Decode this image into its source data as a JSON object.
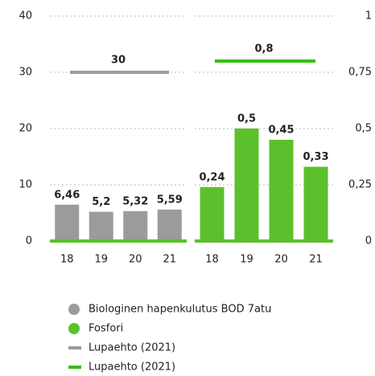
{
  "chart_data": [
    {
      "type": "bar",
      "categories": [
        "18",
        "19",
        "20",
        "21"
      ],
      "series": [
        {
          "name": "Biologinen hapenkulutus BOD 7atu",
          "color": "#9b9b9b",
          "values": [
            6.46,
            5.2,
            5.32,
            5.59
          ],
          "value_labels": [
            "6,46",
            "5,2",
            "5,32",
            "5,59"
          ]
        }
      ],
      "limit": {
        "name": "Lupaehto (2021)",
        "value": 30,
        "color": "#9b9b9b"
      },
      "ylim": [
        0,
        40
      ],
      "yticks": [
        0,
        10,
        20,
        30,
        40
      ],
      "grid": true
    },
    {
      "type": "bar",
      "categories": [
        "18",
        "19",
        "20",
        "21"
      ],
      "series": [
        {
          "name": "Fosfori",
          "color": "#5cc02c",
          "axis": "y2",
          "values": [
            0.24,
            0.5,
            0.45,
            0.33
          ],
          "value_labels": [
            "0,24",
            "0,5",
            "0,45",
            "0,33"
          ]
        }
      ],
      "limit": {
        "name": "Lupaehto (2021)",
        "value": 0.8,
        "value_label": "0,8",
        "color": "#33c011"
      },
      "y2lim": [
        0,
        1
      ],
      "y2ticks": [
        0,
        {
          "value": 0.25,
          "label": "0,25"
        },
        {
          "value": 0.5,
          "label": "0,5"
        },
        {
          "value": 0.75,
          "label": "0,75"
        },
        1
      ],
      "grid": true
    }
  ]
}
